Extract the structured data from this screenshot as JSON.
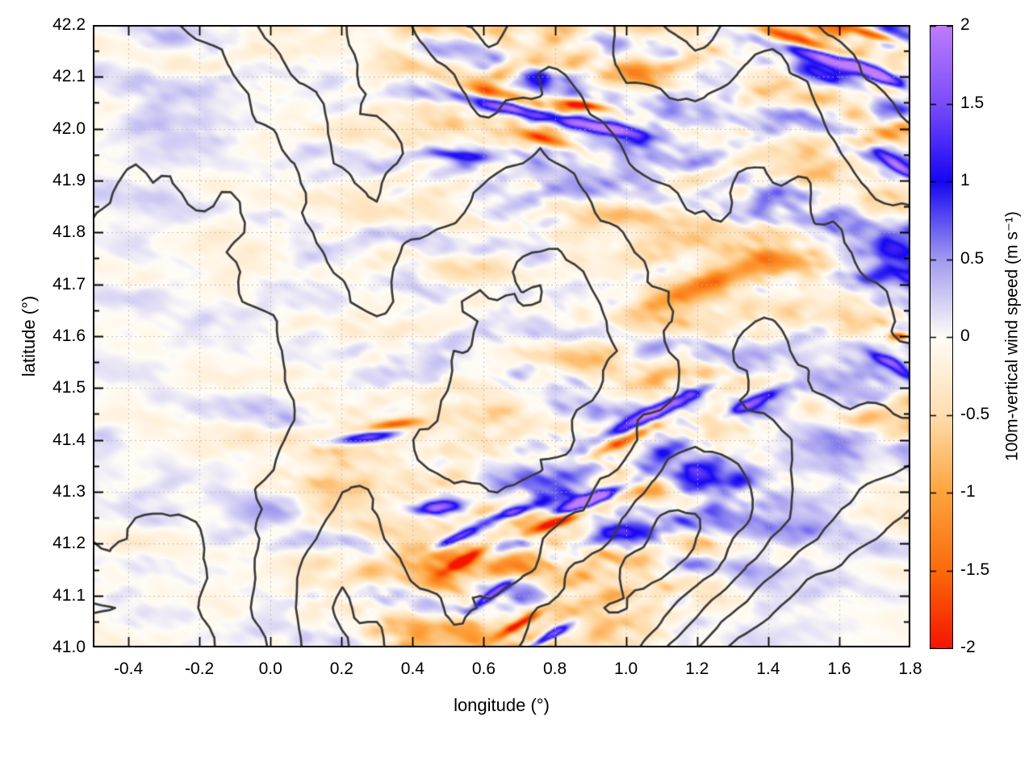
{
  "figure": {
    "background": "#ffffff"
  },
  "chart_data": {
    "type": "heatmap",
    "title": "",
    "xlabel": "longitude (°)",
    "ylabel": "latitude (°)",
    "colorbar_label": "100m-vertical wind speed (m s⁻¹)",
    "xlim": [
      -0.5,
      1.8
    ],
    "ylim": [
      41.0,
      42.2
    ],
    "clim": [
      -2,
      2
    ],
    "x_ticks": {
      "values": [
        -0.4,
        -0.2,
        0.0,
        0.2,
        0.4,
        0.6,
        0.8,
        1.0,
        1.2,
        1.4,
        1.6,
        1.8
      ],
      "labels": [
        "-0.4",
        "-0.2",
        "0.0",
        "0.2",
        "0.4",
        "0.6",
        "0.8",
        "1.0",
        "1.2",
        "1.4",
        "1.6",
        "1.8"
      ],
      "minor_step": 0.1
    },
    "y_ticks": {
      "values": [
        41.0,
        41.1,
        41.2,
        41.3,
        41.4,
        41.5,
        41.6,
        41.7,
        41.8,
        41.9,
        42.0,
        42.1,
        42.2
      ],
      "labels": [
        "41.0",
        "41.1",
        "41.2",
        "41.3",
        "41.4",
        "41.5",
        "41.6",
        "41.7",
        "41.8",
        "41.9",
        "42.0",
        "42.1",
        "42.2"
      ],
      "minor_step": 0.05
    },
    "cb_ticks": {
      "values": [
        2,
        1.5,
        1,
        0.5,
        0,
        -0.5,
        -1,
        -1.5,
        -2
      ],
      "labels": [
        "2",
        "1.5",
        "1",
        "0.5",
        "0",
        "-0.5",
        "-1",
        "-1.5",
        "-2"
      ]
    },
    "grid": {
      "show": true,
      "style": "dotted",
      "color": "#b2b2b2"
    },
    "colormap": [
      {
        "v": -2.0,
        "c": "#f51500"
      },
      {
        "v": -1.5,
        "c": "#fb6b0c"
      },
      {
        "v": -1.0,
        "c": "#fda43d"
      },
      {
        "v": -0.5,
        "c": "#fedeb0"
      },
      {
        "v": 0.0,
        "c": "#fffdf7"
      },
      {
        "v": 0.5,
        "c": "#a19af0"
      },
      {
        "v": 1.0,
        "c": "#1706f2"
      },
      {
        "v": 1.5,
        "c": "#7b4dfa"
      },
      {
        "v": 2.0,
        "c": "#bd7dfc"
      }
    ],
    "wind_field": {
      "seed": 11,
      "octaves": [
        {
          "angle": -10,
          "fx": 9,
          "fy": 26,
          "w": 1.0
        },
        {
          "angle": 28,
          "fx": 20,
          "fy": 46,
          "w": 0.55
        },
        {
          "angle": -35,
          "fx": 44,
          "fy": 92,
          "w": 0.33
        }
      ],
      "amp_grid": [
        [
          0.25,
          0.3,
          0.3,
          0.35,
          0.5,
          0.9,
          1.2,
          0.9,
          0.7,
          1.0,
          1.3,
          1.2
        ],
        [
          0.25,
          0.3,
          0.3,
          0.3,
          0.5,
          0.8,
          1.4,
          1.0,
          0.8,
          0.8,
          1.0,
          1.1
        ],
        [
          0.2,
          0.2,
          0.25,
          0.3,
          0.4,
          0.5,
          0.6,
          0.7,
          0.8,
          0.9,
          0.9,
          1.0
        ],
        [
          0.2,
          0.2,
          0.25,
          0.3,
          0.4,
          0.4,
          0.35,
          0.4,
          0.6,
          0.8,
          0.8,
          1.1
        ],
        [
          0.2,
          0.2,
          0.25,
          0.35,
          0.45,
          0.5,
          0.6,
          0.8,
          0.9,
          0.7,
          0.6,
          0.9
        ],
        [
          0.25,
          0.2,
          0.3,
          0.8,
          0.6,
          0.7,
          0.9,
          1.3,
          1.1,
          0.6,
          0.5,
          0.6
        ],
        [
          0.3,
          0.25,
          0.3,
          0.5,
          0.8,
          1.0,
          1.2,
          1.3,
          0.9,
          0.5,
          0.3,
          0.25
        ],
        [
          0.3,
          0.25,
          0.3,
          0.4,
          0.8,
          1.0,
          0.9,
          0.6,
          0.4,
          0.15,
          0.1,
          0.1
        ]
      ],
      "bias_grid": [
        [
          0.02,
          0.03,
          0.02,
          0.0,
          -0.1,
          -0.15,
          -0.2,
          -0.22,
          -0.3,
          -0.18,
          -0.05,
          0.05
        ],
        [
          0.05,
          0.04,
          0.03,
          0.0,
          -0.1,
          -0.1,
          -0.1,
          -0.25,
          -0.25,
          -0.2,
          -0.1,
          0.0
        ],
        [
          0.04,
          0.03,
          0.0,
          -0.04,
          -0.1,
          -0.1,
          -0.06,
          -0.15,
          -0.25,
          -0.2,
          -0.16,
          0.0
        ],
        [
          0.04,
          0.03,
          0.0,
          -0.04,
          -0.08,
          -0.1,
          0.04,
          0.06,
          -0.2,
          -0.25,
          -0.16,
          0.04
        ],
        [
          0.04,
          0.0,
          -0.04,
          -0.1,
          -0.16,
          -0.2,
          -0.2,
          -0.25,
          -0.2,
          -0.1,
          0.06,
          0.0
        ],
        [
          0.05,
          0.03,
          0.0,
          -0.1,
          -0.16,
          -0.25,
          -0.25,
          -0.2,
          -0.1,
          0.08,
          0.08,
          0.07
        ],
        [
          0.04,
          0.03,
          0.0,
          -0.1,
          -0.2,
          -0.3,
          -0.3,
          -0.2,
          -0.1,
          0.06,
          0.05,
          0.03
        ],
        [
          0.04,
          0.03,
          0.0,
          -0.1,
          -0.25,
          -0.3,
          -0.2,
          -0.1,
          0.05,
          0.02,
          0.0,
          0.0
        ]
      ],
      "features_format": "[lon, lat, angle_deg, sigma_along_deg, sigma_across_deg, amplitude_ms]",
      "features": [
        [
          0.63,
          42.07,
          -12,
          0.07,
          0.013,
          -1.5
        ],
        [
          0.7,
          42.035,
          -12,
          0.09,
          0.014,
          2.3
        ],
        [
          0.88,
          42.045,
          -8,
          0.05,
          0.009,
          -2.3
        ],
        [
          0.95,
          42.0,
          -10,
          0.07,
          0.012,
          2.4
        ],
        [
          0.8,
          41.975,
          -15,
          0.06,
          0.01,
          -1.2
        ],
        [
          1.48,
          42.17,
          -18,
          0.1,
          0.013,
          -1.9
        ],
        [
          1.58,
          42.135,
          -18,
          0.11,
          0.014,
          2.2
        ],
        [
          1.7,
          42.18,
          -15,
          0.05,
          0.009,
          -2.1
        ],
        [
          1.72,
          42.1,
          -25,
          0.06,
          0.012,
          1.8
        ],
        [
          1.76,
          41.93,
          -35,
          0.05,
          0.011,
          1.6
        ],
        [
          1.77,
          41.6,
          0,
          0.02,
          0.008,
          -2.0
        ],
        [
          1.74,
          41.55,
          -30,
          0.05,
          0.011,
          1.5
        ],
        [
          1.1,
          41.46,
          25,
          0.12,
          0.013,
          2.1
        ],
        [
          1.0,
          41.4,
          25,
          0.08,
          0.011,
          -1.6
        ],
        [
          0.9,
          41.285,
          20,
          0.07,
          0.011,
          2.3
        ],
        [
          0.8,
          41.24,
          20,
          0.06,
          0.01,
          -2.0
        ],
        [
          0.68,
          41.26,
          15,
          0.05,
          0.01,
          1.8
        ],
        [
          0.47,
          41.27,
          5,
          0.04,
          0.012,
          1.9
        ],
        [
          0.27,
          41.405,
          8,
          0.07,
          0.011,
          1.9
        ],
        [
          0.35,
          41.43,
          8,
          0.05,
          0.009,
          -1.3
        ],
        [
          0.55,
          41.17,
          30,
          0.05,
          0.01,
          -1.5
        ],
        [
          0.62,
          41.1,
          35,
          0.05,
          0.009,
          1.7
        ],
        [
          0.7,
          41.045,
          30,
          0.05,
          0.009,
          -2.0
        ],
        [
          0.78,
          41.02,
          30,
          0.05,
          0.009,
          2.0
        ],
        [
          0.52,
          41.21,
          25,
          0.05,
          0.009,
          1.6
        ],
        [
          1.22,
          41.7,
          20,
          0.1,
          0.02,
          -1.0
        ],
        [
          0.52,
          41.95,
          -5,
          0.06,
          0.011,
          1.2
        ],
        [
          1.35,
          41.47,
          25,
          0.06,
          0.011,
          1.4
        ]
      ]
    },
    "terrain_contours": {
      "levels": [
        250,
        400,
        550,
        700,
        850,
        1000
      ],
      "color": "#3b3b3b",
      "width": 2.7,
      "wiggle": [
        34,
        15
      ],
      "grid": [
        [
          560,
          520,
          500,
          560,
          640,
          700,
          760,
          700,
          620,
          700,
          860,
          900,
          820,
          760,
          820,
          900,
          980,
          1050,
          950,
          900,
          950,
          1050,
          1100,
          1150
        ],
        [
          520,
          490,
          470,
          500,
          580,
          640,
          700,
          760,
          640,
          560,
          700,
          820,
          760,
          700,
          760,
          860,
          900,
          950,
          880,
          820,
          880,
          980,
          1050,
          1100
        ],
        [
          480,
          455,
          440,
          460,
          520,
          580,
          660,
          720,
          700,
          600,
          640,
          700,
          680,
          620,
          700,
          780,
          820,
          860,
          820,
          760,
          820,
          900,
          980,
          1050
        ],
        [
          470,
          430,
          400,
          420,
          470,
          530,
          620,
          700,
          760,
          680,
          600,
          620,
          600,
          560,
          620,
          700,
          760,
          800,
          760,
          700,
          760,
          840,
          900,
          980
        ],
        [
          420,
          390,
          370,
          390,
          430,
          490,
          570,
          650,
          700,
          640,
          560,
          540,
          520,
          500,
          560,
          640,
          700,
          740,
          700,
          650,
          700,
          780,
          840,
          900
        ],
        [
          390,
          360,
          340,
          360,
          400,
          450,
          520,
          600,
          640,
          580,
          520,
          470,
          450,
          430,
          480,
          560,
          640,
          680,
          660,
          620,
          660,
          720,
          780,
          840
        ],
        [
          360,
          330,
          320,
          330,
          370,
          420,
          480,
          560,
          600,
          540,
          470,
          420,
          400,
          390,
          430,
          500,
          580,
          640,
          620,
          580,
          620,
          680,
          720,
          780
        ],
        [
          345,
          315,
          300,
          310,
          350,
          400,
          460,
          530,
          560,
          500,
          430,
          390,
          370,
          360,
          400,
          470,
          540,
          600,
          580,
          540,
          580,
          640,
          680,
          720
        ],
        [
          330,
          310,
          300,
          310,
          340,
          380,
          440,
          500,
          520,
          460,
          400,
          360,
          350,
          340,
          380,
          450,
          520,
          560,
          540,
          500,
          540,
          600,
          640,
          660
        ],
        [
          320,
          300,
          290,
          300,
          330,
          370,
          430,
          480,
          490,
          430,
          380,
          350,
          340,
          340,
          380,
          460,
          540,
          600,
          560,
          500,
          520,
          560,
          580,
          600
        ],
        [
          310,
          290,
          280,
          290,
          320,
          380,
          450,
          500,
          470,
          410,
          370,
          350,
          360,
          380,
          430,
          520,
          620,
          700,
          640,
          560,
          520,
          500,
          480,
          460
        ],
        [
          295,
          275,
          265,
          285,
          330,
          400,
          480,
          540,
          500,
          430,
          390,
          380,
          400,
          440,
          510,
          620,
          740,
          820,
          740,
          620,
          520,
          440,
          380,
          340
        ],
        [
          275,
          255,
          245,
          270,
          330,
          420,
          520,
          600,
          560,
          480,
          430,
          430,
          460,
          520,
          610,
          740,
          860,
          900,
          780,
          620,
          480,
          360,
          280,
          220
        ],
        [
          250,
          230,
          220,
          255,
          330,
          430,
          560,
          660,
          620,
          530,
          480,
          490,
          540,
          620,
          720,
          840,
          900,
          820,
          640,
          460,
          320,
          220,
          150,
          100
        ],
        [
          225,
          205,
          195,
          235,
          320,
          440,
          580,
          700,
          680,
          580,
          530,
          560,
          620,
          700,
          790,
          860,
          780,
          600,
          420,
          280,
          180,
          110,
          60,
          40
        ],
        [
          200,
          180,
          170,
          215,
          310,
          430,
          570,
          690,
          720,
          620,
          580,
          620,
          690,
          760,
          800,
          740,
          600,
          420,
          260,
          150,
          90,
          50,
          30,
          20
        ]
      ]
    }
  }
}
